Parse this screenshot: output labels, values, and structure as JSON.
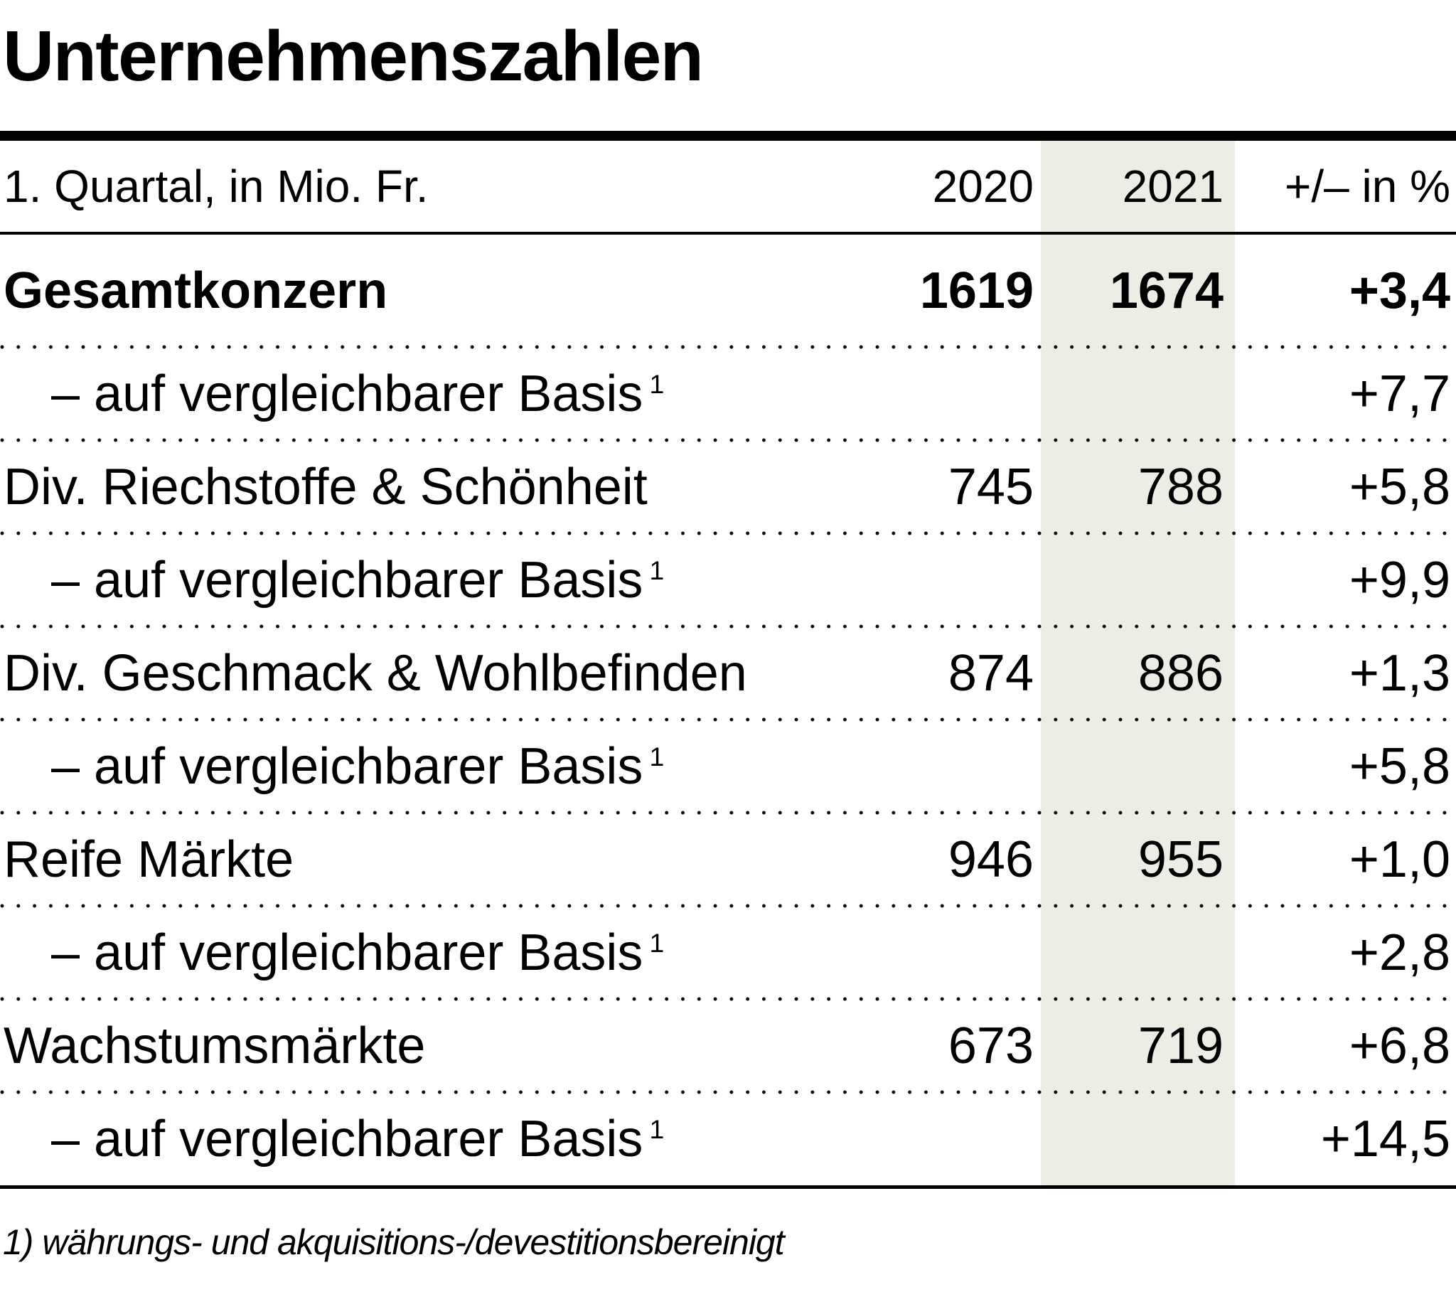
{
  "chart_data": {
    "type": "table",
    "title": "Unternehmenszahlen",
    "columns": {
      "label": "1. Quartal, in Mio. Fr.",
      "col_2020": "2020",
      "col_2021": "2021",
      "col_change": "+/– in %"
    },
    "highlighted_column": "2021",
    "rows": [
      {
        "label": "Gesamtkonzern",
        "v2020": "1619",
        "v2021": "1674",
        "change": "+3,4",
        "emphasis": "bold"
      },
      {
        "label": "– auf vergleichbarer Basis",
        "sup": "1",
        "v2020": "",
        "v2021": "",
        "change": "+7,7"
      },
      {
        "label": "Div. Riechstoffe & Schönheit",
        "v2020": "745",
        "v2021": "788",
        "change": "+5,8"
      },
      {
        "label": "– auf vergleichbarer Basis",
        "sup": "1",
        "v2020": "",
        "v2021": "",
        "change": "+9,9"
      },
      {
        "label": "Div. Geschmack & Wohlbefinden",
        "v2020": "874",
        "v2021": "886",
        "change": "+1,3"
      },
      {
        "label": "– auf vergleichbarer Basis",
        "sup": "1",
        "v2020": "",
        "v2021": "",
        "change": "+5,8"
      },
      {
        "label": "Reife Märkte",
        "v2020": "946",
        "v2021": "955",
        "change": "+1,0"
      },
      {
        "label": "– auf vergleichbarer Basis",
        "sup": "1",
        "v2020": "",
        "v2021": "",
        "change": "+2,8"
      },
      {
        "label": "Wachstumsmärkte",
        "v2020": "673",
        "v2021": "719",
        "change": "+6,8"
      },
      {
        "label": "– auf vergleichbarer Basis",
        "sup": "1",
        "v2020": "",
        "v2021": "",
        "change": "+14,5"
      }
    ],
    "footnote": "1) währungs- und akquisitions-/devestitionsbereinigt"
  },
  "colors": {
    "highlight_column_bg": "#edece5",
    "text": "#000000",
    "rule": "#000000"
  }
}
